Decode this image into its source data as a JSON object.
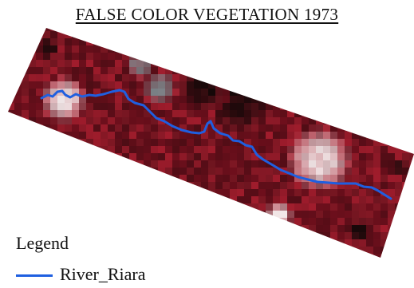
{
  "map": {
    "title": "FALSE COLOR VEGETATION 1973",
    "legend": {
      "title": "Legend",
      "items": [
        {
          "label": "River_Riara",
          "color": "#1f5fe0",
          "symbol": "line"
        }
      ]
    },
    "river_color": "#1f5fe0",
    "palette": {
      "vegetation_red": "#a01c2c",
      "deep_red": "#6e0f1c",
      "dark": "#140808",
      "light": "#f4eeee",
      "gray": "#7a8a8e"
    }
  }
}
